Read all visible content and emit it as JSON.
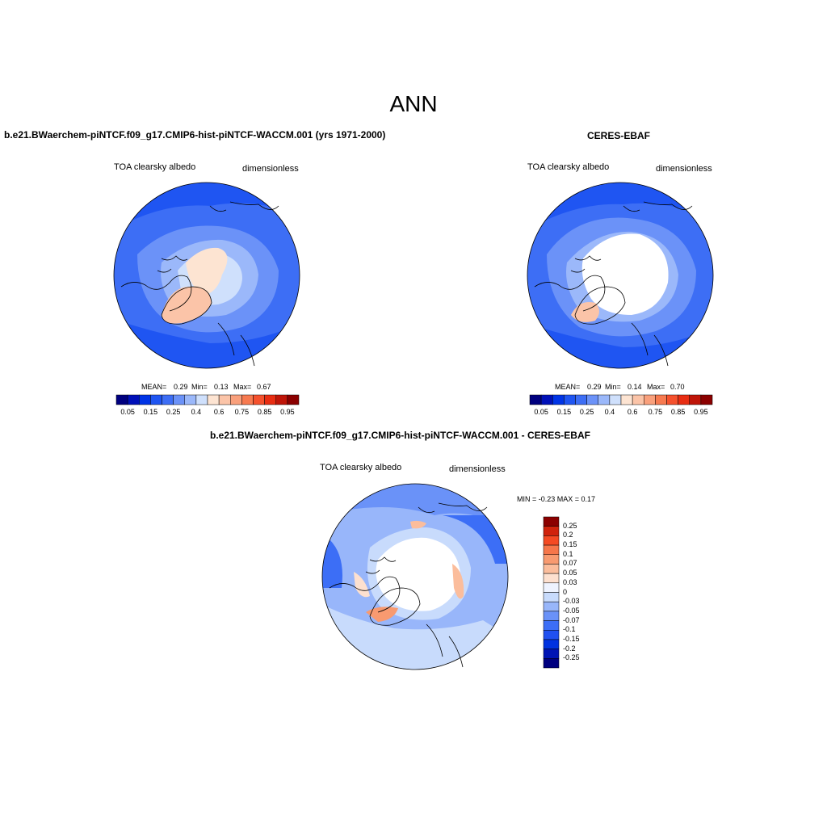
{
  "figure": {
    "title": "ANN",
    "colors": {
      "ramp": [
        "#00007f",
        "#0010b8",
        "#0034e6",
        "#1f55f2",
        "#3d6ef5",
        "#6b92f8",
        "#9bb8fa",
        "#cfe0fc",
        "#fde4d2",
        "#fbc4a8",
        "#f9a07c",
        "#f77a50",
        "#f5512d",
        "#e82d12",
        "#bf1508",
        "#8b0000"
      ],
      "diff_ramp": [
        "#00007f",
        "#0014b4",
        "#0032e0",
        "#2050f0",
        "#3c6ef6",
        "#6a92f8",
        "#98b6fa",
        "#c8dbfc",
        "#eef3ff",
        "#fde0cf",
        "#fbbd9c",
        "#f89a70",
        "#f6764a",
        "#f44a23",
        "#d0230c",
        "#8b0000"
      ]
    }
  },
  "panels": [
    {
      "title": "b.e21.BWaerchem-piNTCF.f09_g17.CMIP6-hist-piNTCF-WACCM.001 (yrs 1971-2000)",
      "left_label": "TOA clearsky albedo",
      "right_label": "dimensionless",
      "stats": {
        "mean_label": "MEAN=",
        "mean": "0.29",
        "min_label": "Min=",
        "min": "0.13",
        "max_label": "Max=",
        "max": "0.67"
      },
      "colorbar_ticks": [
        "0.05",
        "0.15",
        "0.25",
        "0.4",
        "0.6",
        "0.75",
        "0.85",
        "0.95"
      ]
    },
    {
      "title": "CERES-EBAF",
      "left_label": "TOA clearsky albedo",
      "right_label": "dimensionless",
      "stats": {
        "mean_label": "MEAN=",
        "mean": "0.29",
        "min_label": "Min=",
        "min": "0.14",
        "max_label": "Max=",
        "max": "0.70"
      },
      "colorbar_ticks": [
        "0.05",
        "0.15",
        "0.25",
        "0.4",
        "0.6",
        "0.75",
        "0.85",
        "0.95"
      ]
    },
    {
      "title": "b.e21.BWaerchem-piNTCF.f09_g17.CMIP6-hist-piNTCF-WACCM.001 - CERES-EBAF",
      "left_label": "TOA clearsky albedo",
      "right_label": "dimensionless",
      "minmax": "MIN =  -0.23 MAX =   0.17",
      "colorbar_ticks": [
        "0.25",
        "0.2",
        "0.15",
        "0.1",
        "0.07",
        "0.05",
        "0.03",
        "0",
        "-0.03",
        "-0.05",
        "-0.07",
        "-0.1",
        "-0.15",
        "-0.2",
        "-0.25"
      ]
    }
  ]
}
